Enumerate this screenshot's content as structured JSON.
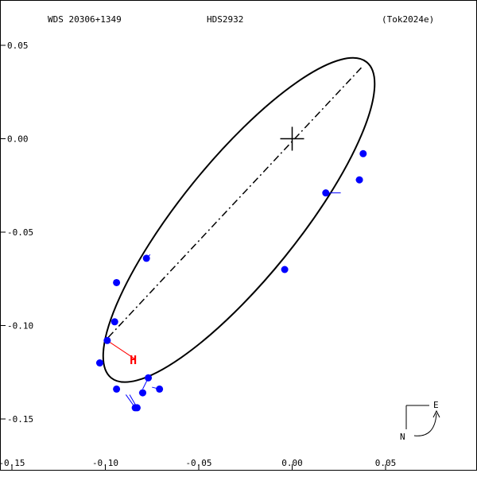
{
  "header": {
    "wds_id": "WDS 20306+1349",
    "discoverer": "HDS2932",
    "reference": "(Tok2024e)"
  },
  "compass": {
    "east_label": "E",
    "north_label": "N"
  },
  "chart_data": {
    "type": "scatter",
    "xlim": [
      -0.15,
      0.1
    ],
    "ylim": [
      -0.175,
      0.075
    ],
    "x_tick_labels": [
      "-0.15",
      "-0.10",
      "-0.05",
      "0.00",
      "0.05"
    ],
    "y_tick_labels": [
      "0.05",
      "0.00",
      "-0.05",
      "-0.10",
      "-0.15"
    ],
    "grid": false,
    "primary_marker": {
      "x": 0.0,
      "y": 0.0,
      "shape": "cross"
    },
    "orbit": {
      "shape": "ellipse",
      "center": [
        -0.0285,
        -0.0435
      ],
      "semi_major": 0.1087,
      "semi_minor": 0.0315,
      "orientation_deg": 51
    },
    "line_of_nodes": [
      [
        0.037,
        0.038
      ],
      [
        -0.1,
        -0.108
      ]
    ],
    "observations": [
      {
        "x": 0.038,
        "y": -0.008,
        "orbit_x": 0.038,
        "orbit_y": -0.008
      },
      {
        "x": 0.036,
        "y": -0.022,
        "orbit_x": 0.034,
        "orbit_y": -0.022
      },
      {
        "x": 0.018,
        "y": -0.029,
        "orbit_x": 0.026,
        "orbit_y": -0.029
      },
      {
        "x": -0.004,
        "y": -0.07,
        "orbit_x": -0.004,
        "orbit_y": -0.07
      },
      {
        "x": -0.078,
        "y": -0.064,
        "orbit_x": -0.076,
        "orbit_y": -0.062
      },
      {
        "x": -0.094,
        "y": -0.077,
        "orbit_x": -0.094,
        "orbit_y": -0.077
      },
      {
        "x": -0.095,
        "y": -0.098,
        "orbit_x": -0.096,
        "orbit_y": -0.098
      },
      {
        "x": -0.099,
        "y": -0.108,
        "orbit_x": -0.099,
        "orbit_y": -0.108
      },
      {
        "x": -0.103,
        "y": -0.12,
        "orbit_x": -0.103,
        "orbit_y": -0.12
      },
      {
        "x": -0.094,
        "y": -0.134,
        "orbit_x": -0.094,
        "orbit_y": -0.134
      },
      {
        "x": -0.084,
        "y": -0.144,
        "orbit_x": -0.089,
        "orbit_y": -0.137
      },
      {
        "x": -0.083,
        "y": -0.144,
        "orbit_x": -0.087,
        "orbit_y": -0.137
      },
      {
        "x": -0.08,
        "y": -0.136,
        "orbit_x": -0.082,
        "orbit_y": -0.136
      },
      {
        "x": -0.077,
        "y": -0.128,
        "orbit_x": -0.08,
        "orbit_y": -0.134
      },
      {
        "x": -0.071,
        "y": -0.134,
        "orbit_x": -0.075,
        "orbit_y": -0.133
      }
    ],
    "hipparcos": {
      "label": "H",
      "x": -0.084,
      "y": -0.118,
      "orbit_x": -0.099,
      "orbit_y": -0.108
    },
    "colors": {
      "observation": "#0000ff",
      "hipparcos": "#ff0000",
      "orbit": "#000000"
    }
  }
}
